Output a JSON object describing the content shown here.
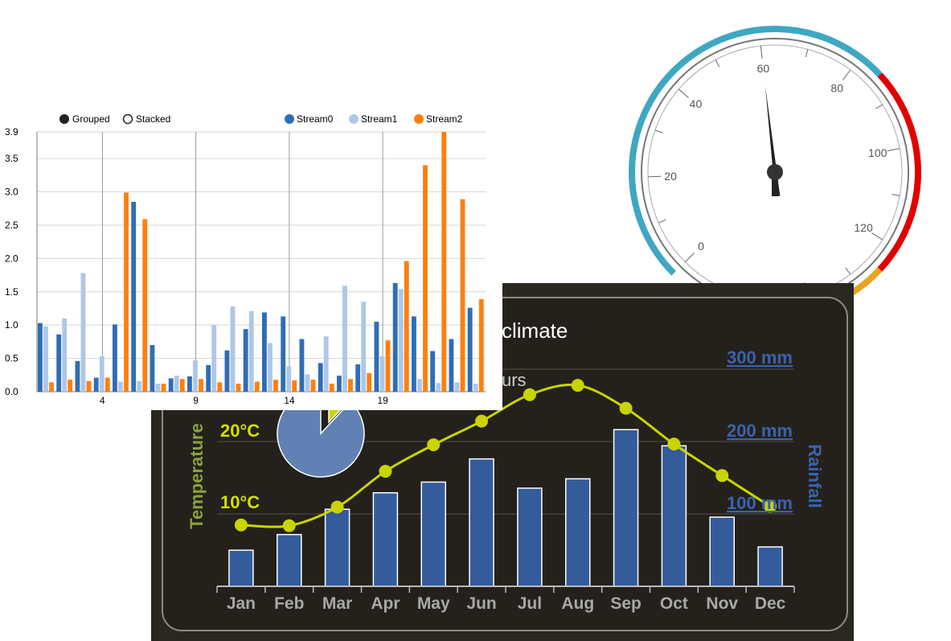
{
  "colors": {
    "stream0": "#2f6db5",
    "stream1": "#aec7e8",
    "stream2": "#ff7f0e",
    "climate_bg": "#2a2620",
    "climate_bar": "#345b9c",
    "climate_line": "#c9d400",
    "temperature_label": "#8aa23a",
    "rainfall_label": "#3b62ad",
    "gauge_blue": "#3ea7c2",
    "gauge_red": "#e00000",
    "gauge_orange": "#e6a521",
    "pie_blue": "#6181b4",
    "pie_yellow": "#c9d400"
  },
  "gauge": {
    "tick_labels": [
      "0",
      "20",
      "40",
      "60",
      "80",
      "100",
      "120"
    ],
    "min": 0,
    "max": 140,
    "value": 60,
    "bands": [
      {
        "from": 0,
        "to": 85,
        "color": "#3ea7c2"
      },
      {
        "from": 85,
        "to": 125,
        "color": "#e00000"
      },
      {
        "from": 125,
        "to": 140,
        "color": "#e6a521"
      }
    ]
  },
  "climate": {
    "title_fragment": "climate",
    "subtitle_fragment": "urs",
    "left_axis_title": "Temperature",
    "right_axis_title": "Rainfall",
    "temp_ticks": [
      "10°C",
      "20°C"
    ],
    "rain_ticks": [
      "100 mm",
      "200 mm",
      "300 mm"
    ]
  },
  "bar_legend": {
    "modes": [
      "Grouped",
      "Stacked"
    ],
    "selected_mode": "Grouped",
    "series": [
      "Stream0",
      "Stream1",
      "Stream2"
    ]
  },
  "chart_data": [
    {
      "type": "bar",
      "x": [
        1,
        2,
        3,
        4,
        5,
        6,
        7,
        8,
        9,
        10,
        11,
        12,
        13,
        14,
        15,
        16,
        17,
        18,
        19,
        20,
        21,
        22,
        23,
        24
      ],
      "x_tick_labels": [
        "4",
        "9",
        "14",
        "19"
      ],
      "x_ticks": [
        4,
        9,
        14,
        19
      ],
      "y_tick_labels": [
        "0.0",
        "0.5",
        "1.0",
        "1.5",
        "2.0",
        "2.5",
        "3.0",
        "3.5",
        "3.9"
      ],
      "ylim": [
        0,
        3.9
      ],
      "grid": true,
      "legend_placement": "top",
      "series": [
        {
          "name": "Stream0",
          "values": [
            1.03,
            0.86,
            0.46,
            0.21,
            1.01,
            2.85,
            0.7,
            0.2,
            0.23,
            0.4,
            0.62,
            0.94,
            1.19,
            1.13,
            0.79,
            0.43,
            0.24,
            0.41,
            1.05,
            1.63,
            1.13,
            0.61,
            0.79,
            1.26
          ]
        },
        {
          "name": "Stream1",
          "values": [
            0.98,
            1.1,
            1.78,
            0.53,
            0.15,
            0.16,
            0.12,
            0.24,
            0.47,
            1.0,
            1.28,
            1.21,
            0.73,
            0.38,
            0.26,
            0.83,
            1.59,
            1.35,
            0.53,
            1.54,
            0.19,
            0.13,
            0.14,
            0.12
          ]
        },
        {
          "name": "Stream2",
          "values": [
            0.14,
            0.18,
            0.16,
            0.21,
            2.99,
            2.59,
            0.12,
            0.19,
            0.19,
            0.14,
            0.12,
            0.15,
            0.18,
            0.17,
            0.18,
            0.12,
            0.19,
            0.28,
            0.77,
            1.96,
            3.4,
            3.9,
            2.89,
            1.39
          ]
        }
      ]
    },
    {
      "type": "bar",
      "categories": [
        "Jan",
        "Feb",
        "Mar",
        "Apr",
        "May",
        "Jun",
        "Jul",
        "Aug",
        "Sep",
        "Oct",
        "Nov",
        "Dec"
      ],
      "series": [
        {
          "name": "Rainfall",
          "values": [
            49.9,
            71.5,
            106.4,
            129.2,
            144.0,
            176.0,
            135.6,
            148.5,
            216.4,
            194.1,
            95.6,
            54.4
          ]
        },
        {
          "name": "Temperature",
          "type": "line",
          "values": [
            7.0,
            6.9,
            9.5,
            14.5,
            18.2,
            21.5,
            25.2,
            26.5,
            23.3,
            18.3,
            13.9,
            9.6
          ]
        }
      ],
      "y_left_ticks": [
        10,
        20
      ],
      "y_right_ticks": [
        100,
        200,
        300
      ]
    },
    {
      "type": "pie",
      "values": [
        88,
        12
      ],
      "colors": [
        "#6181b4",
        "#c9d400"
      ]
    }
  ]
}
